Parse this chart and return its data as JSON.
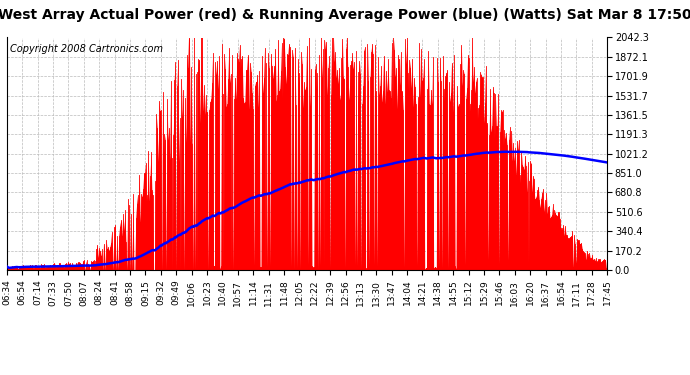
{
  "title": "West Array Actual Power (red) & Running Average Power (blue) (Watts) Sat Mar 8 17:50",
  "copyright": "Copyright 2008 Cartronics.com",
  "yticks": [
    0.0,
    170.2,
    340.4,
    510.6,
    680.8,
    851.0,
    1021.2,
    1191.3,
    1361.5,
    1531.7,
    1701.9,
    1872.1,
    2042.3
  ],
  "ymax": 2042.3,
  "bg_color": "#ffffff",
  "bar_color": "#ff0000",
  "avg_color": "#0000ff",
  "grid_color": "#bbbbbb",
  "title_fontsize": 10,
  "copyright_fontsize": 7,
  "tick_fontsize": 7,
  "xtick_fontsize": 6.5,
  "x_tick_labels": [
    "06:34",
    "06:54",
    "07:14",
    "07:33",
    "07:50",
    "08:07",
    "08:24",
    "08:41",
    "08:58",
    "09:15",
    "09:32",
    "09:49",
    "10:06",
    "10:23",
    "10:40",
    "10:57",
    "11:14",
    "11:31",
    "11:48",
    "12:05",
    "12:22",
    "12:39",
    "12:56",
    "13:13",
    "13:30",
    "13:47",
    "14:04",
    "14:21",
    "14:38",
    "14:55",
    "15:12",
    "15:29",
    "15:46",
    "16:03",
    "16:20",
    "16:37",
    "16:54",
    "17:11",
    "17:28",
    "17:45"
  ]
}
